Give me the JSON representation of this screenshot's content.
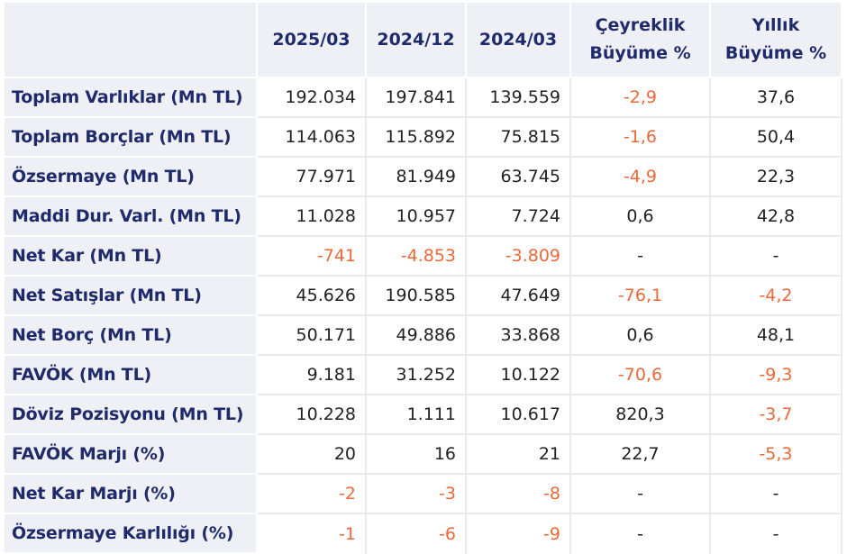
{
  "colors": {
    "header_text": "#1f2a6b",
    "header_bg": "#eff0f5",
    "negative": "#e8693a",
    "text": "#222222"
  },
  "headers": {
    "c1": "2025/03",
    "c2": "2024/12",
    "c3": "2024/03",
    "c4_line1": "Çeyreklik",
    "c4_line2": "Büyüme %",
    "c5_line1": "Yıllık",
    "c5_line2": "Büyüme %"
  },
  "rows": [
    {
      "label": "Toplam Varlıklar (Mn TL)",
      "c1": "192.034",
      "c2": "197.841",
      "c3": "139.559",
      "c4": "-2,9",
      "c5": "37,6"
    },
    {
      "label": "Toplam Borçlar (Mn TL)",
      "c1": "114.063",
      "c2": "115.892",
      "c3": "75.815",
      "c4": "-1,6",
      "c5": "50,4"
    },
    {
      "label": "Özsermaye (Mn TL)",
      "c1": "77.971",
      "c2": "81.949",
      "c3": "63.745",
      "c4": "-4,9",
      "c5": "22,3"
    },
    {
      "label": "Maddi Dur. Varl. (Mn TL)",
      "c1": "11.028",
      "c2": "10.957",
      "c3": "7.724",
      "c4": "0,6",
      "c5": "42,8"
    },
    {
      "label": "Net Kar (Mn TL)",
      "c1": "-741",
      "c2": "-4.853",
      "c3": "-3.809",
      "c4": "-",
      "c5": "-"
    },
    {
      "label": "Net Satışlar (Mn TL)",
      "c1": "45.626",
      "c2": "190.585",
      "c3": "47.649",
      "c4": "-76,1",
      "c5": "-4,2"
    },
    {
      "label": "Net Borç (Mn TL)",
      "c1": "50.171",
      "c2": "49.886",
      "c3": "33.868",
      "c4": "0,6",
      "c5": "48,1"
    },
    {
      "label": "FAVÖK (Mn TL)",
      "c1": "9.181",
      "c2": "31.252",
      "c3": "10.122",
      "c4": "-70,6",
      "c5": "-9,3"
    },
    {
      "label": "Döviz Pozisyonu (Mn TL)",
      "c1": "10.228",
      "c2": "1.111",
      "c3": "10.617",
      "c4": "820,3",
      "c5": "-3,7"
    },
    {
      "label": "FAVÖK Marjı (%)",
      "c1": "20",
      "c2": "16",
      "c3": "21",
      "c4": "22,7",
      "c5": "-5,3"
    },
    {
      "label": "Net Kar Marjı (%)",
      "c1": "-2",
      "c2": "-3",
      "c3": "-8",
      "c4": "-",
      "c5": "-"
    },
    {
      "label": "Özsermaye Karlılığı (%)",
      "c1": "-1",
      "c2": "-6",
      "c3": "-9",
      "c4": "-",
      "c5": "-"
    }
  ]
}
